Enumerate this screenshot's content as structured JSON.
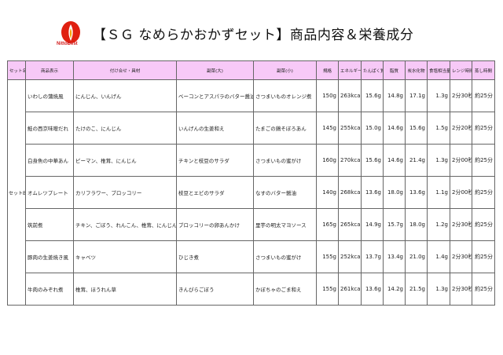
{
  "header": {
    "title": "【ＳＧ なめらかおかずセット】商品内容＆栄養成分",
    "logo_text": "NittoBest",
    "header_color": "#f7c9f7",
    "logo_color": "#e02010"
  },
  "table": {
    "columns": [
      "セット名",
      "商品表示",
      "付け合せ・具材",
      "副菜(大)",
      "副菜(小)",
      "規格",
      "エネルギー",
      "たんぱく質",
      "脂質",
      "炭水化物",
      "食塩相当量",
      "レンジ時間",
      "蒸し時間"
    ],
    "set_name": "セットB",
    "rows": [
      [
        "いわしの蒲焼風",
        "にんじん、いんげん",
        "ベーコンとアスパラのバター醤油",
        "さつまいものオレンジ煮",
        "150g",
        "263kcal",
        "15.6g",
        "14.8g",
        "17.1g",
        "1.3g",
        "2分30秒",
        "約25分"
      ],
      [
        "鮭の西京味噌だれ",
        "たけのこ、にんじん",
        "いんげんの生姜和え",
        "たまごの鶏そぼろあん",
        "145g",
        "255kcal",
        "15.0g",
        "14.6g",
        "15.6g",
        "1.5g",
        "2分20秒",
        "約25分"
      ],
      [
        "白身魚の中華あん",
        "ピーマン、椎茸、にんじん",
        "チキンと枝豆のサラダ",
        "さつまいもの蜜がけ",
        "160g",
        "270kcal",
        "15.6g",
        "14.6g",
        "21.4g",
        "1.3g",
        "2分00秒",
        "約25分"
      ],
      [
        "オムレツプレート",
        "カリフラワー、ブロッコリー",
        "枝豆とエビのサラダ",
        "なすのバター醤油",
        "140g",
        "268kcal",
        "13.6g",
        "18.0g",
        "13.6g",
        "1.1g",
        "2分00秒",
        "約25分"
      ],
      [
        "筑前煮",
        "チキン、ごぼう、れんこん、椎茸、にんじん",
        "ブロッコリーの卵あんかけ",
        "里芋の明太マヨソース",
        "165g",
        "265kcal",
        "14.9g",
        "15.7g",
        "18.0g",
        "1.2g",
        "2分30秒",
        "約25分"
      ],
      [
        "豚肉の生姜焼き風",
        "キャベツ",
        "ひじき煮",
        "さつまいもの蜜がけ",
        "155g",
        "252kcal",
        "13.7g",
        "13.4g",
        "21.0g",
        "1.4g",
        "2分30秒",
        "約25分"
      ],
      [
        "牛肉のみぞれ煮",
        "椎茸、ほうれん草",
        "きんぴらごぼう",
        "かぼちゃのごま和え",
        "155g",
        "261kcal",
        "13.6g",
        "14.2g",
        "21.5g",
        "1.3g",
        "2分30秒",
        "約25分"
      ]
    ]
  }
}
